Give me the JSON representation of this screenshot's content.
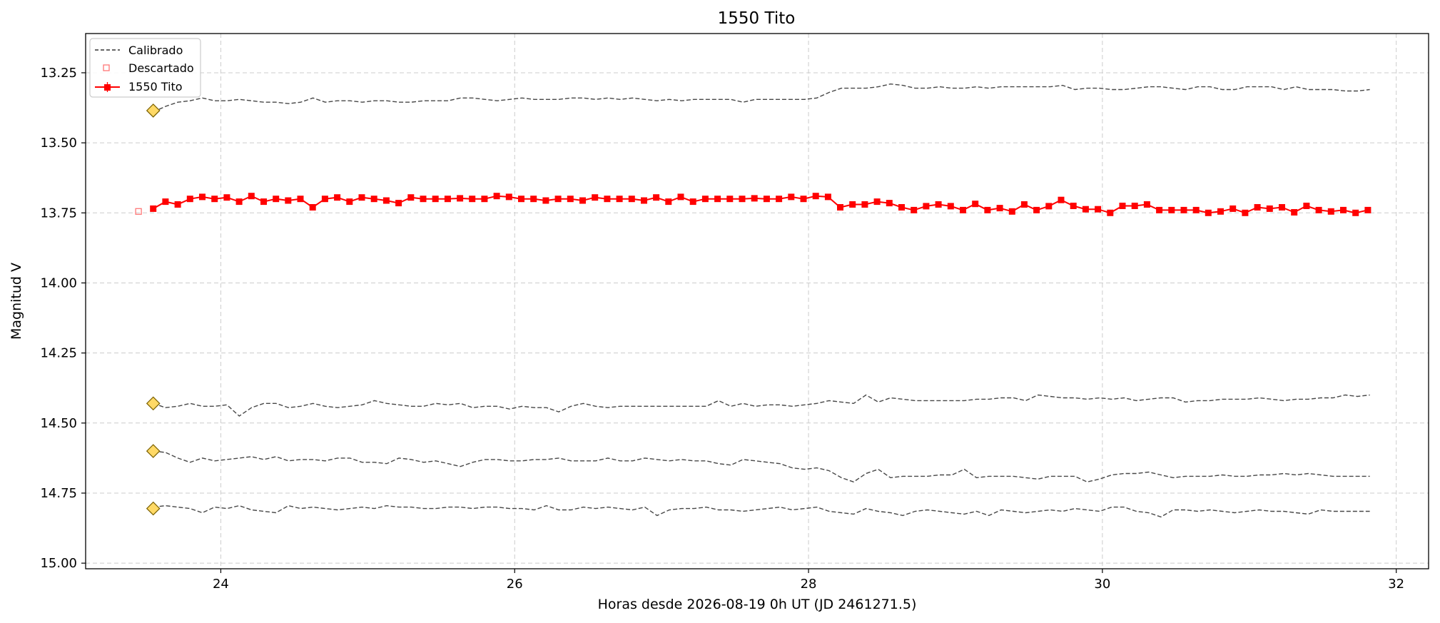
{
  "chart_data": {
    "type": "line",
    "title": "1550 Tito",
    "xlabel": "Horas desde 2026-08-19 0h UT (JD 2461271.5)",
    "ylabel": "Magnitud V",
    "xlim": [
      23.08,
      32.22
    ],
    "ylim": [
      15.02,
      13.11
    ],
    "y_inverted": true,
    "grid": true,
    "x_ticks": [
      24,
      26,
      28,
      30,
      32
    ],
    "x_tick_labels": [
      "24",
      "26",
      "28",
      "30",
      "32"
    ],
    "y_ticks": [
      13.25,
      13.5,
      13.75,
      14.0,
      14.25,
      14.5,
      14.75,
      15.0
    ],
    "y_tick_labels": [
      "13.25",
      "13.50",
      "13.75",
      "14.00",
      "14.25",
      "14.50",
      "14.75",
      "15.00"
    ],
    "legend": {
      "placement": "top-left",
      "entries": [
        {
          "label": "Calibrado",
          "style": "dashed-line",
          "color": "#333333"
        },
        {
          "label": "Descartado",
          "style": "open-square",
          "color": "#ff7777"
        },
        {
          "label": "1550 Tito",
          "style": "line-square",
          "color": "#ff0000"
        }
      ]
    },
    "series": [
      {
        "name": "1550 Tito",
        "color": "#ff0000",
        "x_start": 23.54,
        "x_step": 0.0835,
        "values": [
          13.735,
          13.71,
          13.72,
          13.7,
          13.693,
          13.7,
          13.695,
          13.71,
          13.69,
          13.71,
          13.7,
          13.706,
          13.7,
          13.73,
          13.7,
          13.695,
          13.71,
          13.695,
          13.7,
          13.706,
          13.715,
          13.695,
          13.7,
          13.7,
          13.7,
          13.698,
          13.7,
          13.7,
          13.69,
          13.693,
          13.7,
          13.7,
          13.706,
          13.7,
          13.7,
          13.706,
          13.695,
          13.7,
          13.7,
          13.7,
          13.706,
          13.695,
          13.71,
          13.693,
          13.71,
          13.7,
          13.7,
          13.7,
          13.7,
          13.698,
          13.7,
          13.7,
          13.693,
          13.7,
          13.69,
          13.693,
          13.73,
          13.72,
          13.72,
          13.71,
          13.715,
          13.73,
          13.74,
          13.726,
          13.72,
          13.726,
          13.74,
          13.718,
          13.74,
          13.733,
          13.745,
          13.72,
          13.74,
          13.726,
          13.704,
          13.725,
          13.737,
          13.737,
          13.75,
          13.725,
          13.725,
          13.72,
          13.74,
          13.74,
          13.74,
          13.74,
          13.75,
          13.745,
          13.735,
          13.75,
          13.73,
          13.735,
          13.73,
          13.748,
          13.725,
          13.74,
          13.745,
          13.74,
          13.75,
          13.74
        ]
      },
      {
        "name": "Descartado",
        "color": "#ff7777",
        "x": [
          23.44
        ],
        "values": [
          13.745
        ]
      }
    ],
    "comparison_series": [
      {
        "x_start": 23.54,
        "x_end": 31.82,
        "start_marker": 13.385,
        "values": [
          13.39,
          13.37,
          13.355,
          13.35,
          13.34,
          13.35,
          13.35,
          13.345,
          13.35,
          13.355,
          13.355,
          13.36,
          13.355,
          13.34,
          13.355,
          13.35,
          13.35,
          13.355,
          13.35,
          13.35,
          13.355,
          13.355,
          13.35,
          13.35,
          13.35,
          13.34,
          13.34,
          13.345,
          13.35,
          13.345,
          13.34,
          13.345,
          13.345,
          13.345,
          13.34,
          13.34,
          13.345,
          13.34,
          13.345,
          13.34,
          13.345,
          13.35,
          13.345,
          13.35,
          13.345,
          13.345,
          13.345,
          13.345,
          13.355,
          13.345,
          13.345,
          13.345,
          13.345,
          13.345,
          13.34,
          13.32,
          13.305,
          13.305,
          13.305,
          13.3,
          13.29,
          13.295,
          13.305,
          13.305,
          13.3,
          13.305,
          13.305,
          13.3,
          13.305,
          13.3,
          13.3,
          13.3,
          13.3,
          13.3,
          13.295,
          13.31,
          13.305,
          13.305,
          13.31,
          13.31,
          13.305,
          13.3,
          13.3,
          13.305,
          13.31,
          13.3,
          13.3,
          13.31,
          13.31,
          13.3,
          13.3,
          13.3,
          13.31,
          13.3,
          13.31,
          13.31,
          13.31,
          13.315,
          13.315,
          13.31
        ]
      },
      {
        "x_start": 23.54,
        "x_end": 31.82,
        "start_marker": 14.43,
        "values": [
          14.43,
          14.445,
          14.44,
          14.43,
          14.44,
          14.44,
          14.435,
          14.475,
          14.445,
          14.43,
          14.43,
          14.445,
          14.44,
          14.43,
          14.44,
          14.445,
          14.44,
          14.435,
          14.42,
          14.43,
          14.435,
          14.44,
          14.44,
          14.43,
          14.435,
          14.43,
          14.445,
          14.44,
          14.44,
          14.45,
          14.44,
          14.445,
          14.445,
          14.46,
          14.44,
          14.43,
          14.44,
          14.445,
          14.44,
          14.44,
          14.44,
          14.44,
          14.44,
          14.44,
          14.44,
          14.44,
          14.42,
          14.44,
          14.43,
          14.44,
          14.435,
          14.435,
          14.44,
          14.435,
          14.43,
          14.42,
          14.425,
          14.43,
          14.4,
          14.425,
          14.41,
          14.415,
          14.42,
          14.42,
          14.42,
          14.42,
          14.42,
          14.415,
          14.415,
          14.41,
          14.41,
          14.42,
          14.4,
          14.405,
          14.41,
          14.41,
          14.415,
          14.41,
          14.415,
          14.41,
          14.42,
          14.415,
          14.41,
          14.41,
          14.425,
          14.42,
          14.42,
          14.415,
          14.415,
          14.415,
          14.41,
          14.415,
          14.42,
          14.415,
          14.415,
          14.41,
          14.41,
          14.4,
          14.405,
          14.4
        ]
      },
      {
        "x_start": 23.54,
        "x_end": 31.82,
        "start_marker": 14.6,
        "values": [
          14.6,
          14.605,
          14.625,
          14.64,
          14.625,
          14.635,
          14.63,
          14.625,
          14.62,
          14.63,
          14.62,
          14.635,
          14.63,
          14.63,
          14.635,
          14.625,
          14.625,
          14.64,
          14.64,
          14.645,
          14.625,
          14.63,
          14.64,
          14.635,
          14.645,
          14.655,
          14.64,
          14.63,
          14.63,
          14.635,
          14.635,
          14.63,
          14.63,
          14.625,
          14.635,
          14.635,
          14.635,
          14.625,
          14.635,
          14.635,
          14.625,
          14.63,
          14.635,
          14.63,
          14.635,
          14.635,
          14.645,
          14.65,
          14.63,
          14.635,
          14.64,
          14.645,
          14.66,
          14.665,
          14.66,
          14.67,
          14.695,
          14.71,
          14.68,
          14.665,
          14.695,
          14.69,
          14.69,
          14.69,
          14.685,
          14.685,
          14.665,
          14.695,
          14.69,
          14.69,
          14.69,
          14.695,
          14.7,
          14.69,
          14.69,
          14.69,
          14.71,
          14.7,
          14.685,
          14.68,
          14.68,
          14.675,
          14.685,
          14.695,
          14.69,
          14.69,
          14.69,
          14.685,
          14.69,
          14.69,
          14.685,
          14.685,
          14.68,
          14.685,
          14.68,
          14.685,
          14.69,
          14.69,
          14.69,
          14.69
        ]
      },
      {
        "x_start": 23.54,
        "x_end": 31.82,
        "start_marker": 14.805,
        "values": [
          14.8,
          14.795,
          14.8,
          14.805,
          14.82,
          14.8,
          14.805,
          14.795,
          14.81,
          14.815,
          14.82,
          14.795,
          14.805,
          14.8,
          14.805,
          14.81,
          14.805,
          14.8,
          14.805,
          14.795,
          14.8,
          14.8,
          14.805,
          14.805,
          14.8,
          14.8,
          14.805,
          14.8,
          14.8,
          14.805,
          14.805,
          14.81,
          14.795,
          14.81,
          14.81,
          14.8,
          14.805,
          14.8,
          14.805,
          14.81,
          14.8,
          14.83,
          14.81,
          14.805,
          14.805,
          14.8,
          14.81,
          14.81,
          14.815,
          14.81,
          14.805,
          14.8,
          14.81,
          14.805,
          14.8,
          14.815,
          14.82,
          14.825,
          14.805,
          14.815,
          14.82,
          14.83,
          14.815,
          14.81,
          14.815,
          14.82,
          14.825,
          14.815,
          14.83,
          14.81,
          14.815,
          14.82,
          14.815,
          14.81,
          14.815,
          14.805,
          14.81,
          14.815,
          14.8,
          14.8,
          14.815,
          14.82,
          14.835,
          14.81,
          14.81,
          14.815,
          14.81,
          14.815,
          14.82,
          14.815,
          14.81,
          14.815,
          14.815,
          14.82,
          14.825,
          14.81,
          14.815,
          14.815,
          14.815,
          14.815
        ]
      }
    ]
  }
}
